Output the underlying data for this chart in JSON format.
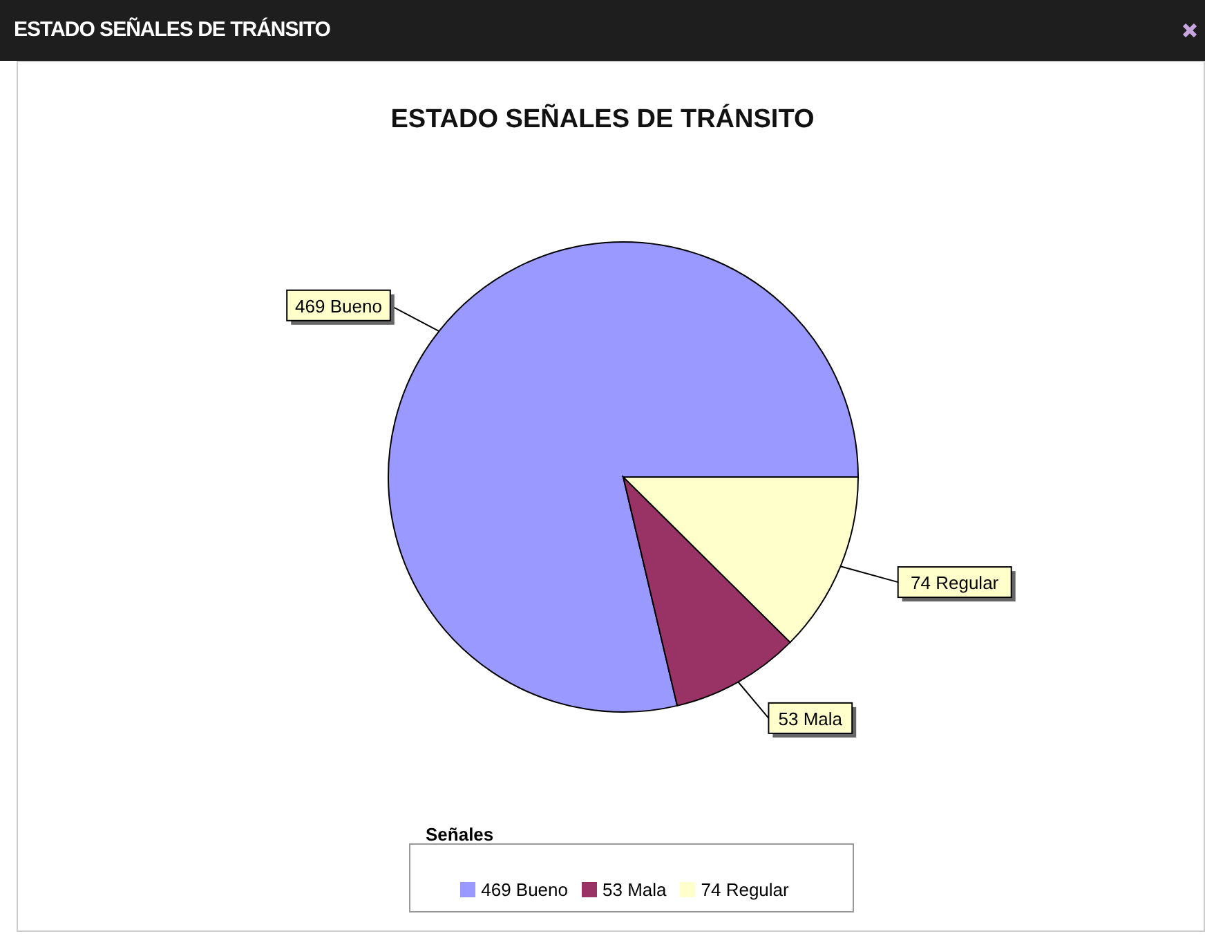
{
  "chart_data": {
    "type": "pie",
    "title": "ESTADO SEÑALES DE TRÁNSITO",
    "annotations": [
      "ESTADO SEÑALES DE TRÁNSITO"
    ],
    "categories": [
      "469 Bueno",
      "53 Mala",
      "74 Regular"
    ],
    "values": [
      469,
      53,
      74
    ],
    "colors": [
      "#9999ff",
      "#993366",
      "#ffffcc"
    ],
    "legend": "bottom",
    "legend_title": "Señales"
  }
}
